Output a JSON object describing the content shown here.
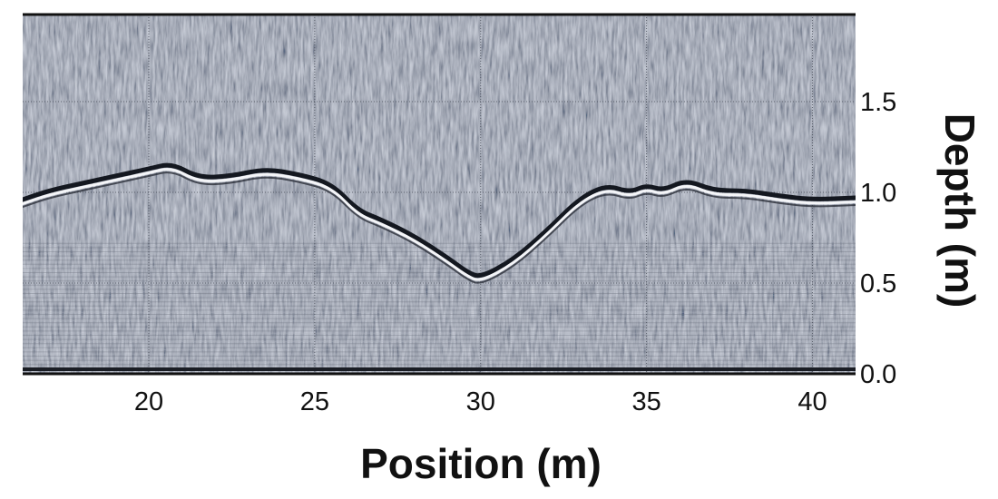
{
  "chart_data": {
    "type": "heatmap",
    "title": "",
    "xlabel": "Position (m)",
    "ylabel": "Depth (m)",
    "xlim": [
      16.2,
      41.3
    ],
    "ylim": [
      0.0,
      1.98
    ],
    "x_ticks": [
      20,
      25,
      30,
      35,
      40
    ],
    "x_tick_labels": [
      "20",
      "25",
      "30",
      "35",
      "40"
    ],
    "y_ticks": [
      0.0,
      0.5,
      1.0,
      1.5
    ],
    "y_tick_labels": [
      "0.0",
      "0.5",
      "1.0",
      "1.5"
    ],
    "y_axis_side": "right",
    "grid": true,
    "colormap": "grayscale",
    "colors": {
      "background": "#8e94a2",
      "grid": "#4a4f5a",
      "frame": "#111111"
    },
    "reflector": {
      "name": "",
      "x": [
        16.2,
        17,
        18,
        19,
        20,
        20.7,
        21.5,
        22.5,
        23.5,
        24.5,
        25.5,
        26.3,
        27,
        28,
        29,
        29.6,
        30,
        31,
        32,
        33,
        33.8,
        34.5,
        35,
        35.5,
        36.2,
        37,
        38,
        39,
        40,
        41.3
      ],
      "y": [
        0.95,
        1.0,
        1.04,
        1.08,
        1.12,
        1.15,
        1.07,
        1.08,
        1.12,
        1.09,
        1.04,
        0.89,
        0.84,
        0.75,
        0.63,
        0.55,
        0.52,
        0.62,
        0.78,
        0.96,
        1.03,
        0.99,
        1.03,
        1.0,
        1.06,
        1.0,
        1.0,
        0.97,
        0.95,
        0.96
      ]
    }
  }
}
